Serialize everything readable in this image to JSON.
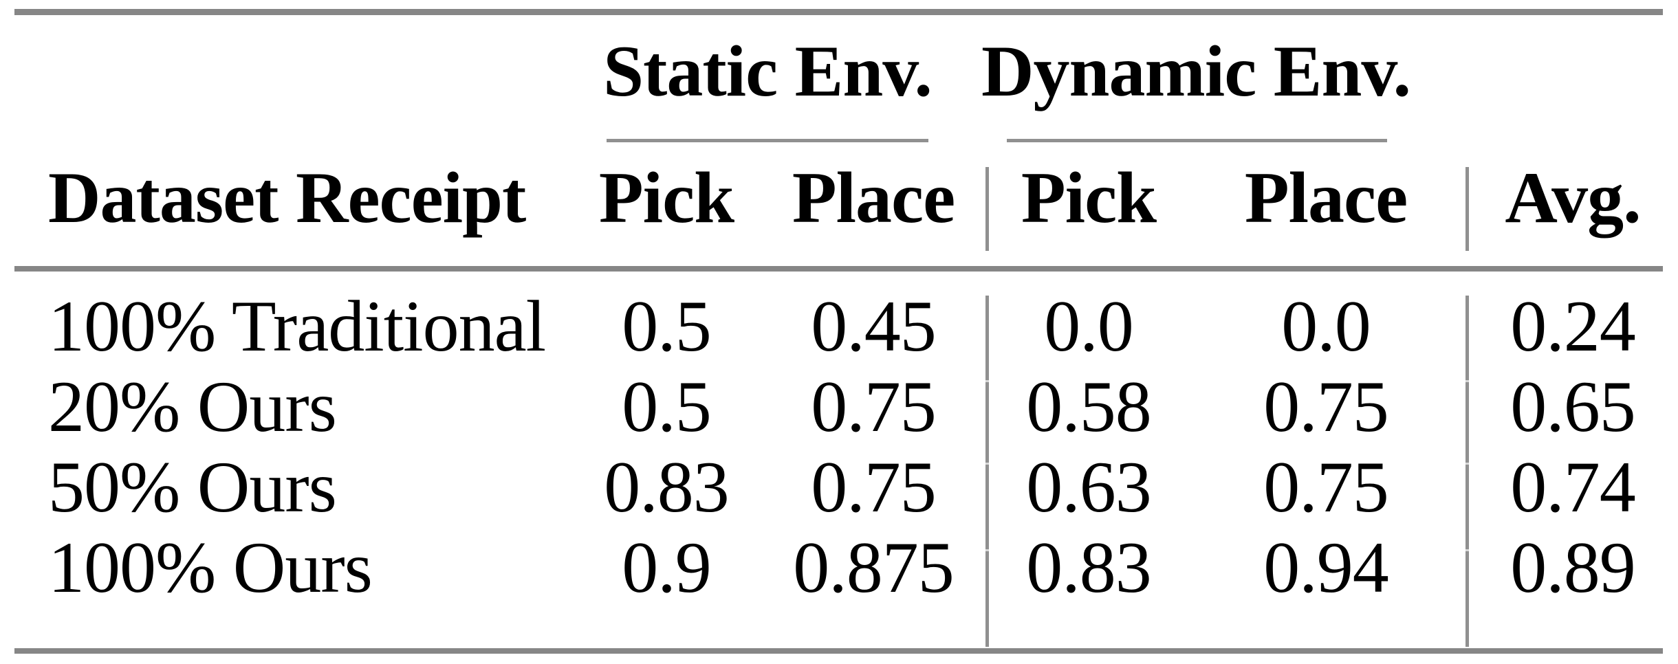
{
  "table": {
    "groups": [
      {
        "label": "Static Env."
      },
      {
        "label": "Dynamic Env."
      }
    ],
    "columns": [
      "Dataset Receipt",
      "Pick",
      "Place",
      "Pick",
      "Place",
      "Avg."
    ],
    "rows": [
      {
        "label": "100% Traditional",
        "values": [
          "0.5",
          "0.45",
          "0.0",
          "0.0",
          "0.24"
        ]
      },
      {
        "label": "20% Ours",
        "values": [
          "0.5",
          "0.75",
          "0.58",
          "0.75",
          "0.65"
        ]
      },
      {
        "label": "50% Ours",
        "values": [
          "0.83",
          "0.75",
          "0.63",
          "0.75",
          "0.74"
        ]
      },
      {
        "label": "100% Ours",
        "values": [
          "0.9",
          "0.875",
          "0.83",
          "0.94",
          "0.89"
        ]
      }
    ],
    "colors": {
      "rule_thick": "#868686",
      "rule_thin": "#909090",
      "text": "#000000",
      "background": "#ffffff"
    }
  }
}
